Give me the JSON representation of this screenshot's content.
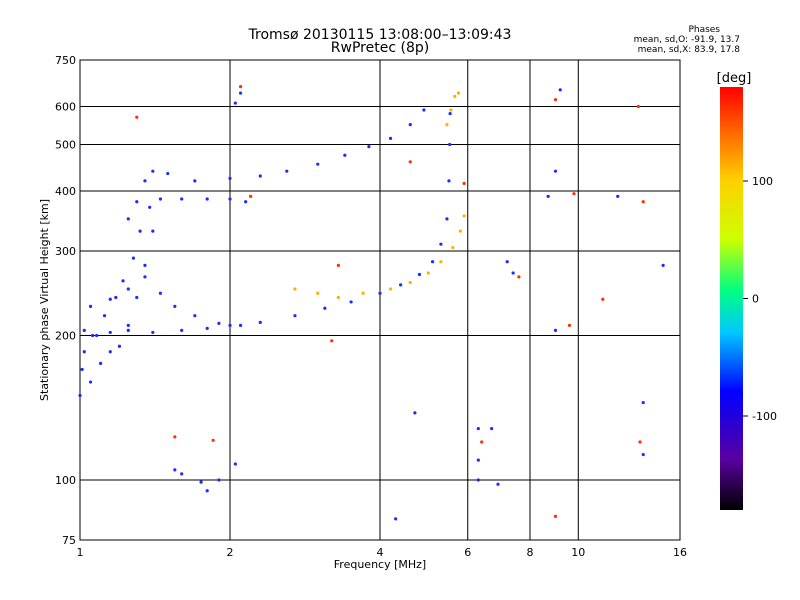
{
  "title": "Tromsø 20130115 13:08:00–13:09:43",
  "subtitle": "RwPretec (8p)",
  "stats": {
    "heading": "Phases",
    "line_o": "mean, sd,O: -91.9, 13.7",
    "line_x": "mean, sd,X: 83.9, 17.8"
  },
  "colorbar": {
    "label": "[deg]",
    "ticks": [
      "100",
      "0",
      "-100"
    ],
    "tick_values": [
      100,
      0,
      -100
    ],
    "range": [
      -180,
      180
    ]
  },
  "chart_data": {
    "type": "scatter",
    "xlabel": "Frequency [MHz]",
    "ylabel": "Stationary phase Virtual Height [km]",
    "xscale": "log",
    "yscale": "log",
    "xlim": [
      1,
      16
    ],
    "ylim": [
      75,
      750
    ],
    "xticks": [
      1,
      2,
      4,
      6,
      8,
      10,
      16
    ],
    "yticks": [
      75,
      100,
      200,
      300,
      400,
      500,
      600,
      750
    ],
    "grid": true,
    "traces": [
      {
        "name": "",
        "phase": -110,
        "points": [
          [
            1.02,
            205
          ],
          [
            1.08,
            200
          ],
          [
            1.15,
            203
          ],
          [
            1.25,
            205
          ],
          [
            1.4,
            203
          ],
          [
            1.6,
            205
          ],
          [
            1.8,
            207
          ],
          [
            2.0,
            210
          ],
          [
            2.3,
            213
          ],
          [
            2.7,
            220
          ],
          [
            3.1,
            228
          ],
          [
            3.5,
            235
          ],
          [
            4.0,
            245
          ],
          [
            4.4,
            255
          ],
          [
            4.8,
            268
          ],
          [
            5.1,
            285
          ],
          [
            5.3,
            310
          ],
          [
            5.45,
            350
          ],
          [
            5.5,
            420
          ],
          [
            5.52,
            500
          ],
          [
            5.53,
            580
          ]
        ]
      },
      {
        "name": "",
        "phase": -110,
        "points": [
          [
            1.05,
            230
          ],
          [
            1.15,
            238
          ],
          [
            1.25,
            250
          ],
          [
            1.35,
            265
          ],
          [
            1.45,
            245
          ],
          [
            1.55,
            230
          ],
          [
            1.7,
            220
          ],
          [
            1.9,
            212
          ],
          [
            2.1,
            210
          ]
        ]
      },
      {
        "name": "",
        "phase": -105,
        "points": [
          [
            1.25,
            350
          ],
          [
            1.3,
            380
          ],
          [
            1.35,
            420
          ],
          [
            1.4,
            440
          ],
          [
            1.5,
            435
          ],
          [
            1.7,
            420
          ],
          [
            2.0,
            425
          ],
          [
            2.3,
            430
          ],
          [
            2.6,
            440
          ],
          [
            3.0,
            455
          ],
          [
            3.4,
            475
          ],
          [
            3.8,
            495
          ],
          [
            4.2,
            515
          ],
          [
            4.6,
            550
          ],
          [
            4.9,
            590
          ]
        ]
      },
      {
        "name": "",
        "phase": -100,
        "points": [
          [
            1.45,
            385
          ],
          [
            1.6,
            385
          ],
          [
            1.8,
            385
          ],
          [
            2.0,
            385
          ],
          [
            2.15,
            380
          ]
        ]
      },
      {
        "name": "",
        "phase": 100,
        "points": [
          [
            2.7,
            250
          ],
          [
            3.0,
            245
          ],
          [
            3.3,
            240
          ],
          [
            3.7,
            245
          ],
          [
            4.2,
            250
          ],
          [
            4.6,
            258
          ],
          [
            5.0,
            270
          ],
          [
            5.3,
            285
          ],
          [
            5.6,
            305
          ],
          [
            5.8,
            330
          ],
          [
            5.9,
            355
          ]
        ]
      },
      {
        "name": "",
        "phase": 95,
        "points": [
          [
            5.45,
            550
          ],
          [
            5.55,
            590
          ],
          [
            5.65,
            630
          ],
          [
            5.75,
            640
          ]
        ]
      },
      {
        "name": "",
        "phase": -115,
        "points": [
          [
            1.0,
            150
          ],
          [
            1.05,
            160
          ],
          [
            1.1,
            175
          ],
          [
            1.15,
            185
          ],
          [
            1.2,
            190
          ],
          [
            1.25,
            210
          ],
          [
            1.3,
            240
          ],
          [
            1.35,
            280
          ],
          [
            1.4,
            330
          ],
          [
            1.38,
            370
          ],
          [
            1.32,
            330
          ],
          [
            1.28,
            290
          ],
          [
            1.22,
            260
          ],
          [
            1.18,
            240
          ],
          [
            1.12,
            220
          ],
          [
            1.06,
            200
          ],
          [
            1.02,
            185
          ],
          [
            1.01,
            170
          ]
        ]
      },
      {
        "name": "",
        "phase": -100,
        "points": [
          [
            1.55,
            105
          ],
          [
            1.6,
            103
          ],
          [
            1.75,
            99
          ],
          [
            1.8,
            95
          ],
          [
            1.9,
            100
          ],
          [
            2.05,
            108
          ],
          [
            2.05,
            610
          ],
          [
            2.1,
            640
          ],
          [
            4.3,
            83
          ],
          [
            4.7,
            138
          ],
          [
            6.3,
            128
          ],
          [
            6.3,
            110
          ],
          [
            6.3,
            100
          ],
          [
            6.7,
            128
          ],
          [
            6.9,
            98
          ],
          [
            7.2,
            285
          ],
          [
            7.4,
            270
          ],
          [
            8.7,
            390
          ],
          [
            9.0,
            440
          ],
          [
            9.0,
            205
          ],
          [
            9.2,
            650
          ],
          [
            12.0,
            390
          ],
          [
            13.5,
            145
          ],
          [
            13.5,
            113
          ],
          [
            14.8,
            280
          ]
        ]
      },
      {
        "name": "",
        "phase": 130,
        "points": [
          [
            1.3,
            570
          ],
          [
            1.55,
            123
          ],
          [
            1.85,
            121
          ],
          [
            2.1,
            660
          ],
          [
            2.2,
            390
          ],
          [
            3.3,
            280
          ],
          [
            3.2,
            195
          ],
          [
            4.6,
            460
          ],
          [
            5.9,
            415
          ],
          [
            6.4,
            120
          ],
          [
            7.6,
            265
          ],
          [
            9.0,
            620
          ],
          [
            9.8,
            395
          ],
          [
            9.6,
            210
          ],
          [
            9.0,
            84
          ],
          [
            11.2,
            238
          ],
          [
            13.2,
            600
          ],
          [
            13.3,
            120
          ],
          [
            13.5,
            380
          ]
        ]
      }
    ]
  }
}
